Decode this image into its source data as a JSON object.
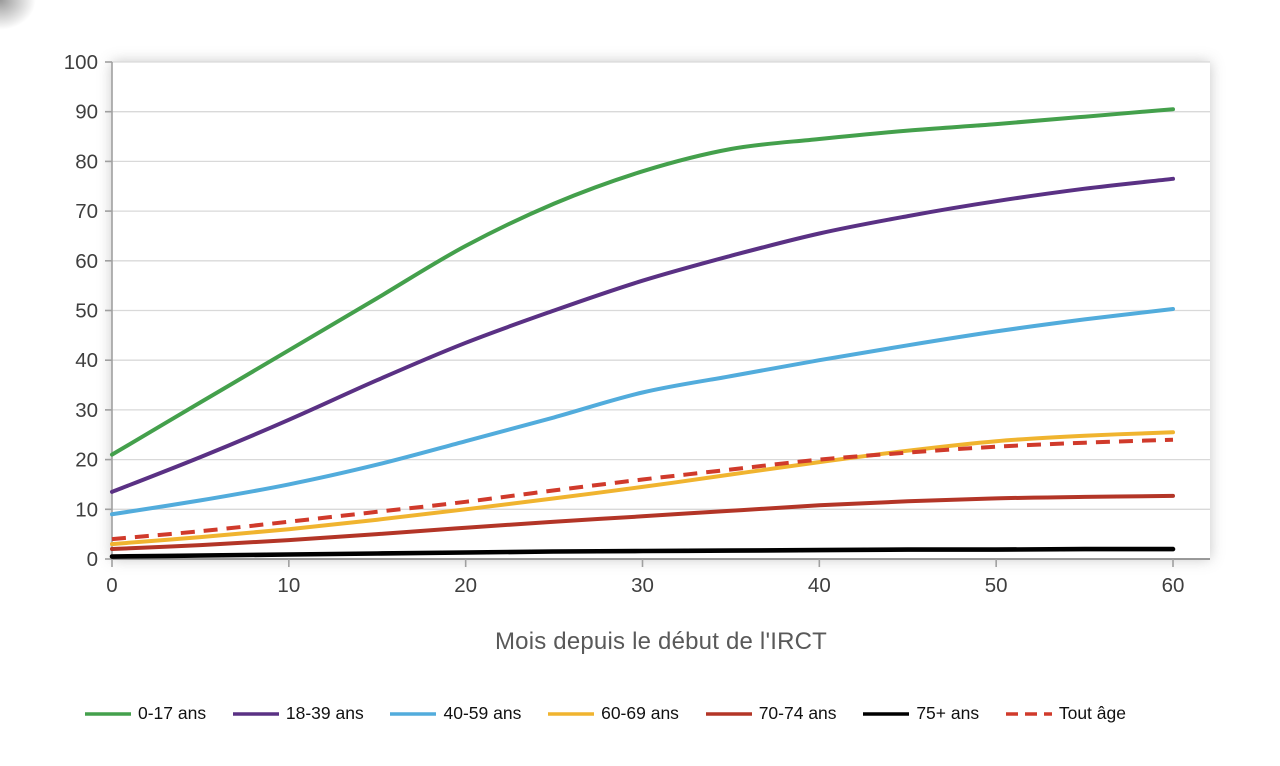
{
  "figure": {
    "x_axis_title": "Mois depuis le début de l'IRCT"
  },
  "chart_data": {
    "type": "line",
    "title": "",
    "xlabel": "Mois depuis le début de l'IRCT",
    "ylabel": "",
    "xlim": [
      0,
      60
    ],
    "ylim": [
      0,
      100
    ],
    "x_ticks": [
      0,
      10,
      20,
      30,
      40,
      50,
      60
    ],
    "y_ticks": [
      0,
      10,
      20,
      30,
      40,
      50,
      60,
      70,
      80,
      90,
      100
    ],
    "grid": "horizontal",
    "legend_position": "bottom",
    "x": [
      0,
      5,
      10,
      15,
      20,
      25,
      30,
      35,
      40,
      45,
      50,
      55,
      60
    ],
    "series": [
      {
        "name": "0-17 ans",
        "color": "#44A04C",
        "style": "solid",
        "values": [
          21,
          31.5,
          42,
          52.5,
          63,
          71.5,
          78,
          82.5,
          84.5,
          86.2,
          87.5,
          89,
          90.5
        ]
      },
      {
        "name": "18-39 ans",
        "color": "#5A3184",
        "style": "solid",
        "values": [
          13.5,
          20.5,
          28,
          36,
          43.5,
          50,
          56,
          61,
          65.5,
          69,
          72,
          74.5,
          76.5
        ]
      },
      {
        "name": "40-59 ans",
        "color": "#52ACDC",
        "style": "solid",
        "values": [
          9,
          11.8,
          15,
          19,
          23.7,
          28.5,
          33.5,
          36.8,
          40,
          43,
          45.8,
          48.2,
          50.3
        ]
      },
      {
        "name": "60-69 ans",
        "color": "#F0B42F",
        "style": "solid",
        "values": [
          3,
          4.4,
          6,
          7.9,
          10,
          12.2,
          14.5,
          17,
          19.5,
          21.8,
          23.7,
          24.8,
          25.5
        ]
      },
      {
        "name": "70-74 ans",
        "color": "#B33527",
        "style": "solid",
        "values": [
          2,
          2.8,
          3.8,
          5,
          6.3,
          7.5,
          8.6,
          9.7,
          10.8,
          11.6,
          12.2,
          12.5,
          12.7
        ]
      },
      {
        "name": "75+ ans",
        "color": "#000000",
        "style": "solid",
        "values": [
          0.5,
          0.7,
          0.9,
          1.1,
          1.3,
          1.5,
          1.6,
          1.7,
          1.8,
          1.9,
          1.9,
          2,
          2
        ]
      },
      {
        "name": "Tout âge",
        "color": "#D03A2B",
        "style": "dashed",
        "values": [
          4,
          5.6,
          7.5,
          9.5,
          11.5,
          13.8,
          16,
          18,
          20,
          21.4,
          22.6,
          23.4,
          24
        ]
      }
    ],
    "axis_colors": {
      "grid": "#D9D9D9",
      "axis_line": "#A0A0A0",
      "tick_label": "#3F3F3F",
      "axis_title": "#595959"
    }
  }
}
